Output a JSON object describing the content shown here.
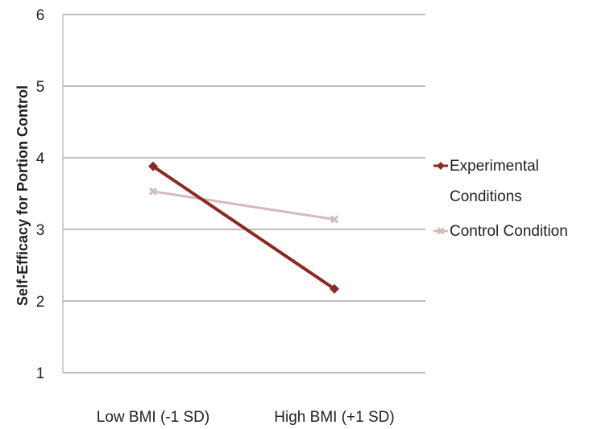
{
  "chart_data": {
    "type": "line",
    "title": "",
    "xlabel": "",
    "ylabel": "Self-Efficacy for Portion Control",
    "categories": [
      "Low BMI (-1 SD)",
      "High BMI (+1 SD)"
    ],
    "ylim": [
      1,
      6
    ],
    "yticks": [
      1,
      2,
      3,
      4,
      5,
      6
    ],
    "grid": true,
    "legend_position": "right",
    "series": [
      {
        "name_lines": [
          "Experimental",
          "Conditions"
        ],
        "values": [
          3.88,
          2.17
        ],
        "color": "#8b2a20",
        "marker": "diamond"
      },
      {
        "name_lines": [
          "Control Condition"
        ],
        "values": [
          3.53,
          3.14
        ],
        "color": "#d2bcbc",
        "marker": "x"
      }
    ]
  }
}
